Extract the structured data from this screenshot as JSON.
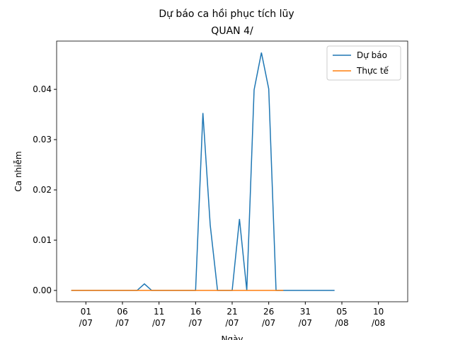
{
  "chart_data": {
    "type": "line",
    "title": "Dự báo ca hồi phục tích lũy",
    "subtitle": "QUAN 4/",
    "x_label": "Ngày",
    "y_label": "Ca nhiễm",
    "x": [
      "29/06",
      "30/06",
      "01/07",
      "02/07",
      "03/07",
      "04/07",
      "05/07",
      "06/07",
      "07/07",
      "08/07",
      "09/07",
      "10/07",
      "11/07",
      "12/07",
      "13/07",
      "14/07",
      "15/07",
      "16/07",
      "17/07",
      "18/07",
      "19/07",
      "20/07",
      "21/07",
      "22/07",
      "23/07",
      "24/07",
      "25/07",
      "26/07",
      "27/07",
      "28/07",
      "29/07",
      "30/07",
      "31/07",
      "01/08",
      "02/08",
      "03/08",
      "04/08"
    ],
    "series": [
      {
        "name": "Dự báo",
        "color": "#1f77b4",
        "values": [
          0,
          0,
          0,
          0,
          0,
          0,
          0,
          0,
          0,
          0,
          0.0013,
          0,
          0,
          0,
          0,
          0,
          0,
          0,
          0.0353,
          0.013,
          0,
          0,
          0,
          0.0142,
          0,
          0.0399,
          0.0473,
          0.0401,
          0,
          0,
          0,
          0,
          0,
          0,
          0,
          0,
          0
        ]
      },
      {
        "name": "Thực tế",
        "color": "#ff7f0e",
        "values": [
          0,
          0,
          0,
          0,
          0,
          0,
          0,
          0,
          0,
          0,
          0,
          0,
          0,
          0,
          0,
          0,
          0,
          0,
          0,
          0,
          0,
          0,
          0,
          0,
          0,
          0,
          0,
          0,
          0,
          0,
          null,
          null,
          null,
          null,
          null,
          null,
          null
        ]
      }
    ],
    "xlim": [
      "27/06",
      "14/08"
    ],
    "xticks": [
      {
        "value": "01/07",
        "label": "01\n/07"
      },
      {
        "value": "06/07",
        "label": "06\n/07"
      },
      {
        "value": "11/07",
        "label": "11\n/07"
      },
      {
        "value": "16/07",
        "label": "16\n/07"
      },
      {
        "value": "21/07",
        "label": "21\n/07"
      },
      {
        "value": "26/07",
        "label": "26\n/07"
      },
      {
        "value": "31/07",
        "label": "31\n/07"
      },
      {
        "value": "05/08",
        "label": "05\n/08"
      },
      {
        "value": "10/08",
        "label": "10\n/08"
      }
    ],
    "ylim": [
      -0.00225,
      0.0496
    ],
    "yticks": [
      {
        "value": 0,
        "label": "0.00"
      },
      {
        "value": 0.01,
        "label": "0.01"
      },
      {
        "value": 0.02,
        "label": "0.02"
      },
      {
        "value": 0.03,
        "label": "0.03"
      },
      {
        "value": 0.04,
        "label": "0.04"
      }
    ],
    "legend": "upper right"
  }
}
